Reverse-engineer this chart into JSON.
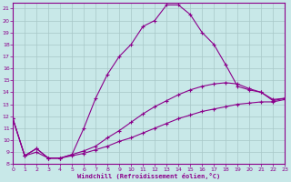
{
  "xlabel": "Windchill (Refroidissement éolien,°C)",
  "bg_color": "#c8e8e8",
  "line_color": "#8b008b",
  "grid_color": "#a8c8c8",
  "xlim": [
    0,
    23
  ],
  "ylim": [
    8,
    21.5
  ],
  "yticks": [
    8,
    9,
    10,
    11,
    12,
    13,
    14,
    15,
    16,
    17,
    18,
    19,
    20,
    21
  ],
  "xticks": [
    0,
    1,
    2,
    3,
    4,
    5,
    6,
    7,
    8,
    9,
    10,
    11,
    12,
    13,
    14,
    15,
    16,
    17,
    18,
    19,
    20,
    21,
    22,
    23
  ],
  "curve1_x": [
    0,
    1,
    2,
    3,
    4,
    5,
    6,
    7,
    8,
    9,
    10,
    11,
    12,
    13,
    14,
    15,
    16,
    17,
    18,
    19,
    20,
    21,
    22,
    23
  ],
  "curve1_y": [
    11.8,
    8.7,
    9.3,
    8.5,
    8.5,
    8.8,
    11.0,
    13.5,
    15.5,
    17.0,
    18.0,
    19.5,
    20.0,
    21.3,
    21.3,
    20.5,
    19.0,
    18.0,
    16.3,
    14.5,
    14.2,
    14.0,
    13.3,
    13.5
  ],
  "curve2_x": [
    0,
    1,
    2,
    3,
    4,
    5,
    6,
    7,
    8,
    9,
    10,
    11,
    12,
    13,
    14,
    15,
    16,
    17,
    18,
    19,
    20,
    21,
    22,
    23
  ],
  "curve2_y": [
    11.8,
    8.7,
    9.3,
    8.5,
    8.5,
    8.8,
    9.1,
    9.5,
    10.2,
    10.8,
    11.5,
    12.2,
    12.8,
    13.3,
    13.8,
    14.2,
    14.5,
    14.7,
    14.8,
    14.7,
    14.3,
    14.0,
    13.4,
    13.5
  ],
  "curve3_x": [
    0,
    1,
    2,
    3,
    4,
    5,
    6,
    7,
    8,
    9,
    10,
    11,
    12,
    13,
    14,
    15,
    16,
    17,
    18,
    19,
    20,
    21,
    22,
    23
  ],
  "curve3_y": [
    11.8,
    8.7,
    9.0,
    8.5,
    8.5,
    8.7,
    8.9,
    9.2,
    9.5,
    9.9,
    10.2,
    10.6,
    11.0,
    11.4,
    11.8,
    12.1,
    12.4,
    12.6,
    12.8,
    13.0,
    13.1,
    13.2,
    13.2,
    13.4
  ]
}
